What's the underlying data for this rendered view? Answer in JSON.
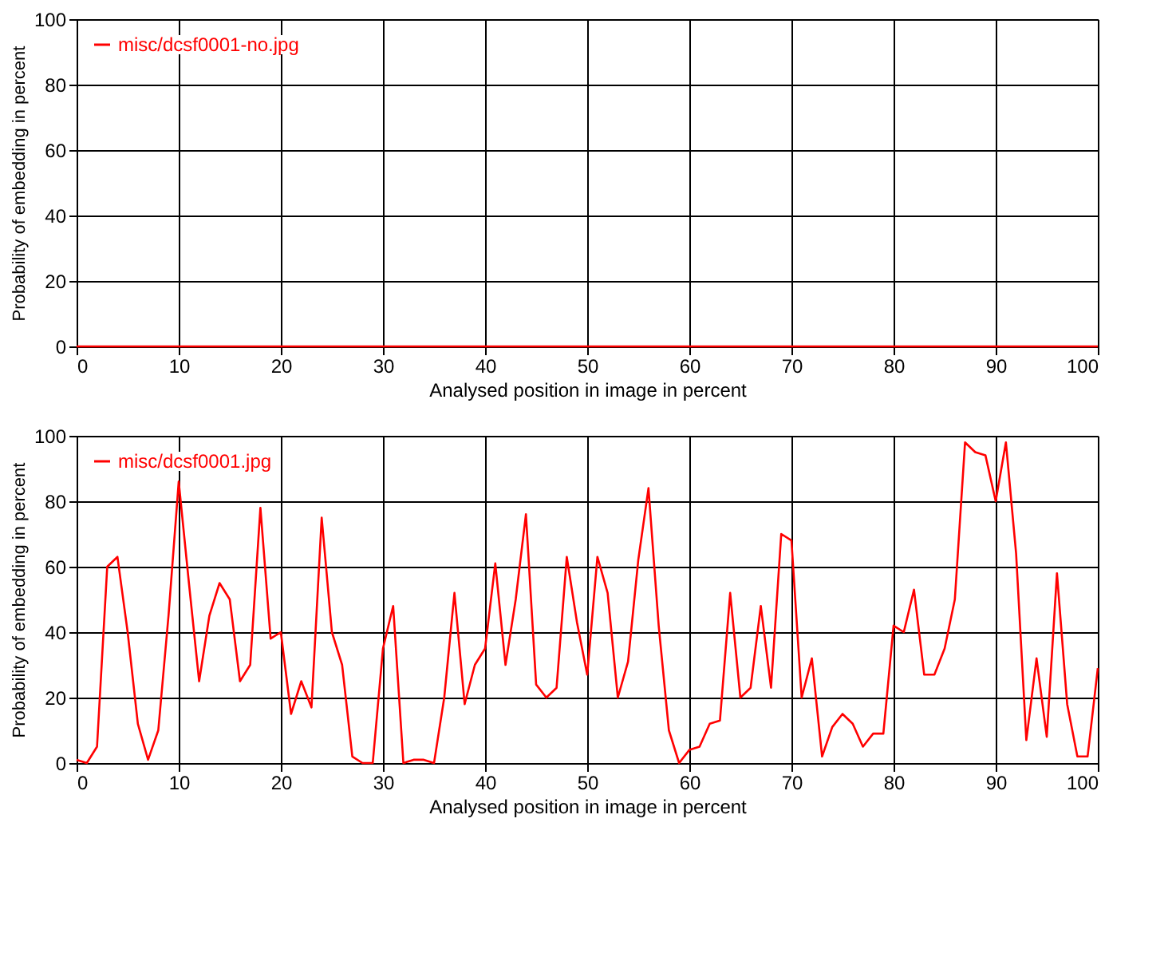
{
  "chart_data": [
    {
      "type": "line",
      "xlabel": "Analysed position in image in percent",
      "ylabel": "Probability of embedding in percent",
      "xlim": [
        0,
        100
      ],
      "ylim": [
        0,
        100
      ],
      "xticks": [
        0,
        10,
        20,
        30,
        40,
        50,
        60,
        70,
        80,
        90,
        100
      ],
      "yticks": [
        0,
        20,
        40,
        60,
        80,
        100
      ],
      "grid": true,
      "legend": "top left",
      "line_style": "solid",
      "x": [
        0,
        1,
        2,
        3,
        4,
        5,
        6,
        7,
        8,
        9,
        10,
        11,
        12,
        13,
        14,
        15,
        16,
        17,
        18,
        19,
        20,
        21,
        22,
        23,
        24,
        25,
        26,
        27,
        28,
        29,
        30,
        31,
        32,
        33,
        34,
        35,
        36,
        37,
        38,
        39,
        40,
        41,
        42,
        43,
        44,
        45,
        46,
        47,
        48,
        49,
        50,
        51,
        52,
        53,
        54,
        55,
        56,
        57,
        58,
        59,
        60,
        61,
        62,
        63,
        64,
        65,
        66,
        67,
        68,
        69,
        70,
        71,
        72,
        73,
        74,
        75,
        76,
        77,
        78,
        79,
        80,
        81,
        82,
        83,
        84,
        85,
        86,
        87,
        88,
        89,
        90,
        91,
        92,
        93,
        94,
        95,
        96,
        97,
        98,
        99,
        100
      ],
      "series": [
        {
          "name": "misc/dcsf0001-no.jpg",
          "color": "#ff0000",
          "values": [
            0,
            0,
            0,
            0,
            0,
            0,
            0,
            0,
            0,
            0,
            0,
            0,
            0,
            0,
            0,
            0,
            0,
            0,
            0,
            0,
            0,
            0,
            0,
            0,
            0,
            0,
            0,
            0,
            0,
            0,
            0,
            0,
            0,
            0,
            0,
            0,
            0,
            0,
            0,
            0,
            0,
            0,
            0,
            0,
            0,
            0,
            0,
            0,
            0,
            0,
            0,
            0,
            0,
            0,
            0,
            0,
            0,
            0,
            0,
            0,
            0,
            0,
            0,
            0,
            0,
            0,
            0,
            0,
            0,
            0,
            0,
            0,
            0,
            0,
            0,
            0,
            0,
            0,
            0,
            0,
            0,
            0,
            0,
            0,
            0,
            0,
            0,
            0,
            0,
            0,
            0,
            0,
            0,
            0,
            0,
            0,
            0,
            0,
            0,
            0,
            0
          ]
        }
      ]
    },
    {
      "type": "line",
      "xlabel": "Analysed position in image in percent",
      "ylabel": "Probability of embedding in percent",
      "xlim": [
        0,
        100
      ],
      "ylim": [
        0,
        100
      ],
      "xticks": [
        0,
        10,
        20,
        30,
        40,
        50,
        60,
        70,
        80,
        90,
        100
      ],
      "yticks": [
        0,
        20,
        40,
        60,
        80,
        100
      ],
      "grid": true,
      "legend": "top left",
      "line_style": "solid",
      "x": [
        0,
        1,
        2,
        3,
        4,
        5,
        6,
        7,
        8,
        9,
        10,
        11,
        12,
        13,
        14,
        15,
        16,
        17,
        18,
        19,
        20,
        21,
        22,
        23,
        24,
        25,
        26,
        27,
        28,
        29,
        30,
        31,
        32,
        33,
        34,
        35,
        36,
        37,
        38,
        39,
        40,
        41,
        42,
        43,
        44,
        45,
        46,
        47,
        48,
        49,
        50,
        51,
        52,
        53,
        54,
        55,
        56,
        57,
        58,
        59,
        60,
        61,
        62,
        63,
        64,
        65,
        66,
        67,
        68,
        69,
        70,
        71,
        72,
        73,
        74,
        75,
        76,
        77,
        78,
        79,
        80,
        81,
        82,
        83,
        84,
        85,
        86,
        87,
        88,
        89,
        90,
        91,
        92,
        93,
        94,
        95,
        96,
        97,
        98,
        99,
        100
      ],
      "series": [
        {
          "name": "misc/dcsf0001.jpg",
          "color": "#ff0000",
          "values": [
            1,
            0,
            5,
            60,
            63,
            40,
            12,
            1,
            10,
            45,
            86,
            55,
            25,
            45,
            55,
            50,
            25,
            30,
            78,
            38,
            40,
            15,
            25,
            17,
            75,
            40,
            30,
            2,
            0,
            0,
            35,
            48,
            0,
            1,
            1,
            0,
            20,
            52,
            18,
            30,
            35,
            61,
            30,
            50,
            76,
            24,
            20,
            23,
            63,
            43,
            27,
            63,
            52,
            20,
            31,
            62,
            84,
            42,
            10,
            0,
            4,
            5,
            12,
            13,
            52,
            20,
            23,
            48,
            23,
            70,
            68,
            20,
            32,
            2,
            11,
            15,
            12,
            5,
            9,
            9,
            42,
            40,
            53,
            27,
            27,
            35,
            50,
            98,
            95,
            94,
            80,
            98,
            64,
            7,
            32,
            8,
            58,
            18,
            2,
            2,
            29
          ]
        }
      ]
    }
  ]
}
